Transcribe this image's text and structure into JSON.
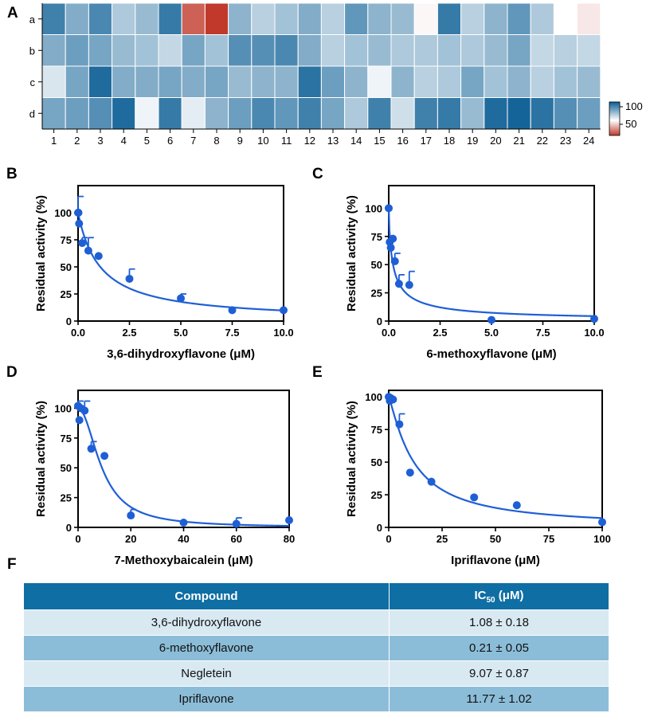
{
  "heatmap": {
    "panel": "A",
    "rows": [
      "a",
      "b",
      "c",
      "d"
    ],
    "cols": [
      "1",
      "2",
      "3",
      "4",
      "5",
      "6",
      "7",
      "8",
      "9",
      "10",
      "11",
      "12",
      "13",
      "14",
      "15",
      "16",
      "17",
      "18",
      "19",
      "20",
      "21",
      "22",
      "23",
      "24"
    ],
    "values": [
      [
        90,
        78,
        88,
        70,
        74,
        92,
        35,
        30,
        76,
        68,
        72,
        78,
        68,
        84,
        76,
        74,
        54,
        92,
        68,
        76,
        84,
        70,
        55,
        52
      ],
      [
        78,
        82,
        80,
        74,
        72,
        66,
        80,
        72,
        86,
        86,
        88,
        78,
        68,
        72,
        74,
        70,
        70,
        72,
        70,
        74,
        80,
        66,
        68,
        66
      ],
      [
        62,
        80,
        96,
        78,
        78,
        80,
        78,
        80,
        74,
        76,
        76,
        94,
        82,
        76,
        58,
        76,
        68,
        70,
        80,
        72,
        76,
        68,
        72,
        74
      ],
      [
        80,
        82,
        86,
        96,
        58,
        92,
        60,
        76,
        82,
        88,
        84,
        90,
        80,
        70,
        90,
        64,
        90,
        92,
        74,
        96,
        98,
        94,
        86,
        82
      ]
    ],
    "colorbar_ticks": [
      "100",
      "50"
    ],
    "colorbar_colors": {
      "high": "#0a5d94",
      "mid": "#ffffff",
      "low": "#c0392b"
    }
  },
  "chart_data": [
    {
      "panel": "B",
      "type": "scatter",
      "xlabel": "3,6-dihydroxyflavone (μM)",
      "ylabel": "Residual activity (%)",
      "xlim": [
        0,
        10
      ],
      "ylim": [
        0,
        125
      ],
      "xticks": [
        "0.0",
        "2.5",
        "5.0",
        "7.5",
        "10.0"
      ],
      "yticks": [
        "0",
        "25",
        "50",
        "75",
        "100"
      ],
      "x": [
        0,
        0.02,
        0.05,
        0.2,
        0.5,
        1,
        2.5,
        5,
        7.5,
        10
      ],
      "y": [
        100,
        100,
        90,
        72,
        65,
        60,
        39,
        21,
        10,
        10
      ],
      "err": [
        15,
        0,
        0,
        5,
        12,
        0,
        9,
        4,
        0,
        0
      ],
      "fit": {
        "model": "hill",
        "ic50": 1.08,
        "slope": 1
      }
    },
    {
      "panel": "C",
      "type": "scatter",
      "xlabel": "6-methoxyflavone (μM)",
      "ylabel": "Residual activity (%)",
      "xlim": [
        0,
        10
      ],
      "ylim": [
        0,
        120
      ],
      "xticks": [
        "0.0",
        "2.5",
        "5.0",
        "7.5",
        "10.0"
      ],
      "yticks": [
        "0",
        "25",
        "50",
        "75",
        "100"
      ],
      "x": [
        0,
        0.05,
        0.1,
        0.2,
        0.3,
        0.5,
        1,
        5,
        10
      ],
      "y": [
        100,
        70,
        65,
        73,
        53,
        33,
        32,
        1,
        2
      ],
      "err": [
        0,
        0,
        0,
        0,
        7,
        8,
        12,
        0,
        0
      ],
      "fit": {
        "model": "hill",
        "ic50": 0.21,
        "slope": 0.8
      }
    },
    {
      "panel": "D",
      "type": "scatter",
      "xlabel": "7-Methoxybaicalein  (μM)",
      "ylabel": "Residual activity (%)",
      "xlim": [
        0,
        80
      ],
      "ylim": [
        0,
        115
      ],
      "xticks": [
        "0",
        "20",
        "40",
        "60",
        "80"
      ],
      "yticks": [
        "0",
        "25",
        "50",
        "75",
        "100"
      ],
      "x": [
        0,
        0.5,
        1,
        2.5,
        5,
        10,
        20,
        40,
        60,
        80
      ],
      "y": [
        102,
        90,
        100,
        98,
        66,
        60,
        10,
        4,
        3,
        6
      ],
      "err": [
        4,
        0,
        0,
        8,
        6,
        0,
        5,
        0,
        5,
        0
      ],
      "fit": {
        "model": "hill",
        "ic50": 9.07,
        "slope": 2
      }
    },
    {
      "panel": "E",
      "type": "scatter",
      "xlabel": "Ipriflavone (μM)",
      "ylabel": "Residual activity (%)",
      "xlim": [
        0,
        100
      ],
      "ylim": [
        0,
        105
      ],
      "xticks": [
        "0",
        "25",
        "50",
        "75",
        "100"
      ],
      "yticks": [
        "0",
        "25",
        "50",
        "75",
        "100"
      ],
      "x": [
        0,
        0.5,
        1,
        2,
        5,
        10,
        20,
        40,
        60,
        100
      ],
      "y": [
        100,
        97,
        99,
        98,
        79,
        42,
        35,
        23,
        17,
        4
      ],
      "err": [
        0,
        0,
        0,
        0,
        8,
        0,
        0,
        0,
        0,
        0
      ],
      "fit": {
        "model": "hill",
        "ic50": 11.77,
        "slope": 1.2
      }
    }
  ],
  "table": {
    "panel": "F",
    "headers": {
      "compound": "Compound",
      "ic50_main": "IC",
      "ic50_sub": "50",
      "ic50_unit": " (μM)"
    },
    "rows": [
      {
        "compound": "3,6-dihydroxyflavone",
        "ic50": "1.08 ± 0.18"
      },
      {
        "compound": "6-methoxyflavone",
        "ic50": "0.21 ± 0.05"
      },
      {
        "compound": "Negletein",
        "ic50": "9.07 ± 0.87"
      },
      {
        "compound": "Ipriflavone",
        "ic50": "11.77 ± 1.02"
      }
    ]
  },
  "colors": {
    "accent": "#1f5fd6",
    "header": "#0f6ea4"
  }
}
